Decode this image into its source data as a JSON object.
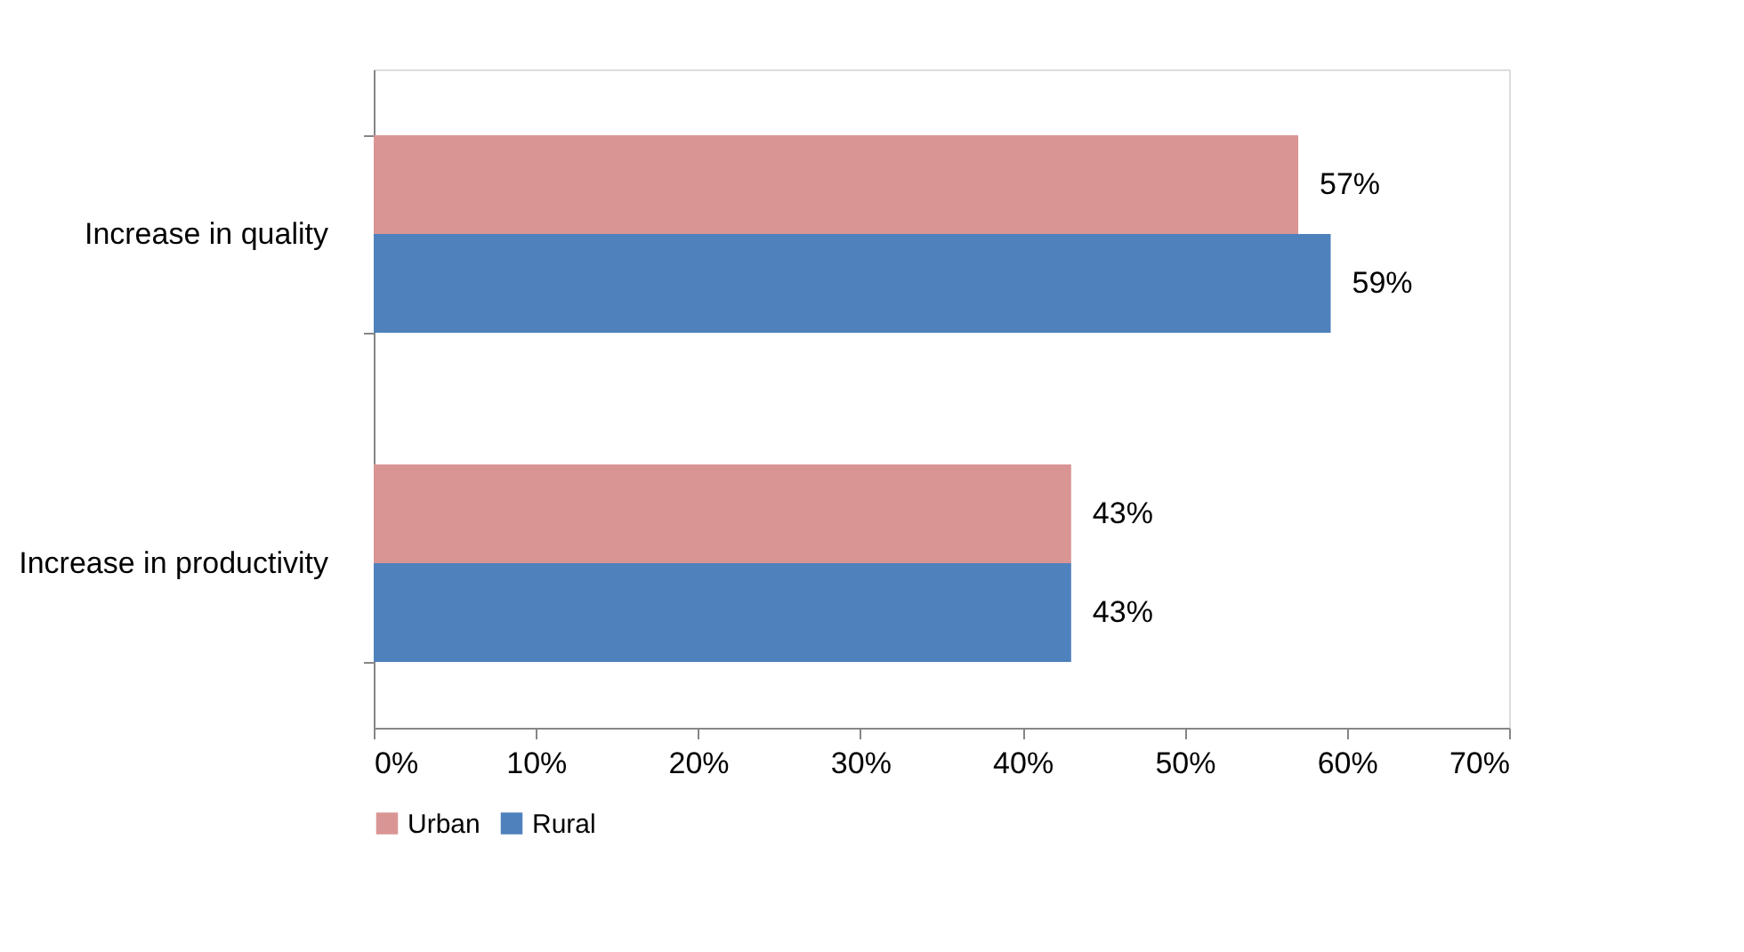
{
  "chart_data": {
    "type": "bar",
    "orientation": "horizontal",
    "categories": [
      "Increase in quality",
      "Increase in productivity"
    ],
    "series": [
      {
        "name": "Urban",
        "color": "#d99594",
        "values": [
          57,
          43
        ],
        "value_labels": [
          "57%",
          "43%"
        ]
      },
      {
        "name": "Rural",
        "color": "#4f81bd",
        "values": [
          59,
          43
        ],
        "value_labels": [
          "59%",
          "43%"
        ]
      }
    ],
    "xlim": [
      0,
      70
    ],
    "xticks": [
      {
        "value": 0,
        "label": "0%"
      },
      {
        "value": 10,
        "label": "10%"
      },
      {
        "value": 20,
        "label": "20%"
      },
      {
        "value": 30,
        "label": "30%"
      },
      {
        "value": 40,
        "label": "40%"
      },
      {
        "value": 50,
        "label": "50%"
      },
      {
        "value": 60,
        "label": "60%"
      },
      {
        "value": 70,
        "label": "70%"
      }
    ],
    "grid": false,
    "legend": "bottom"
  }
}
